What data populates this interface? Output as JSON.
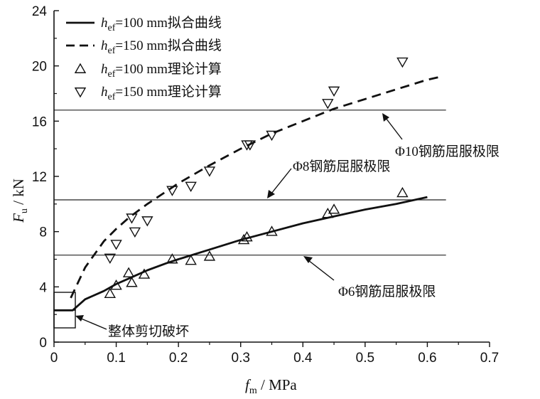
{
  "chart_data": {
    "type": "scatter",
    "xlabel": {
      "main": "f",
      "sub": "m",
      "unit": " / MPa"
    },
    "ylabel": {
      "main": "F",
      "sub": "u",
      "unit": " / kN"
    },
    "xlim": [
      0,
      0.7
    ],
    "ylim": [
      0,
      24
    ],
    "xticks": [
      "0",
      "0.1",
      "0.2",
      "0.3",
      "0.4",
      "0.5",
      "0.6",
      "0.7"
    ],
    "yticks": [
      "0",
      "4",
      "8",
      "12",
      "16",
      "20",
      "24"
    ],
    "grid": false,
    "legend_position": "top-left",
    "series": [
      {
        "name": {
          "main": "h",
          "sub": "ef",
          "rest": "=100 mm拟合曲线"
        },
        "kind": "line",
        "style": "solid",
        "x": [
          0,
          0.03,
          0.05,
          0.08,
          0.1,
          0.12,
          0.15,
          0.18,
          0.2,
          0.25,
          0.3,
          0.35,
          0.4,
          0.45,
          0.5,
          0.55,
          0.6
        ],
        "y": [
          2.3,
          2.3,
          3.1,
          3.7,
          4.2,
          4.6,
          5.2,
          5.7,
          6.0,
          6.7,
          7.4,
          8.0,
          8.6,
          9.1,
          9.6,
          10.0,
          10.5
        ]
      },
      {
        "name": {
          "main": "h",
          "sub": "ef",
          "rest": "=150 mm拟合曲线"
        },
        "kind": "line",
        "style": "dashed",
        "x": [
          0.027,
          0.05,
          0.08,
          0.1,
          0.12,
          0.15,
          0.18,
          0.2,
          0.25,
          0.3,
          0.35,
          0.4,
          0.45,
          0.5,
          0.55,
          0.6,
          0.62
        ],
        "y": [
          3.2,
          5.4,
          7.3,
          8.2,
          9.0,
          10.0,
          10.9,
          11.5,
          12.8,
          14.0,
          15.1,
          16.0,
          16.9,
          17.6,
          18.3,
          19.0,
          19.2
        ]
      },
      {
        "name": {
          "main": "h",
          "sub": "ef",
          "rest": "=100 mm理论计算"
        },
        "kind": "scatter",
        "marker": "triangle-up",
        "x": [
          0.09,
          0.1,
          0.12,
          0.125,
          0.145,
          0.19,
          0.22,
          0.25,
          0.305,
          0.31,
          0.35,
          0.44,
          0.45,
          0.56
        ],
        "y": [
          3.5,
          4.1,
          5.0,
          4.3,
          4.9,
          6.0,
          5.9,
          6.2,
          7.4,
          7.6,
          8.0,
          9.3,
          9.6,
          10.8
        ]
      },
      {
        "name": {
          "main": "h",
          "sub": "ef",
          "rest": "=150 mm理论计算"
        },
        "kind": "scatter",
        "marker": "triangle-down",
        "x": [
          0.09,
          0.1,
          0.125,
          0.13,
          0.15,
          0.19,
          0.22,
          0.25,
          0.31,
          0.315,
          0.35,
          0.44,
          0.45,
          0.56
        ],
        "y": [
          6.1,
          7.1,
          9.0,
          8.0,
          8.8,
          11.0,
          11.3,
          12.4,
          14.3,
          14.3,
          15.0,
          17.3,
          18.2,
          20.3
        ]
      }
    ],
    "reference_lines": [
      {
        "y": 6.3,
        "label": "Φ6钢筋屈服极限"
      },
      {
        "y": 10.3,
        "label": "Φ8钢筋屈服极限"
      },
      {
        "y": 16.8,
        "label": "Φ10钢筋屈服极限"
      }
    ],
    "annotation": {
      "label": "整体剪切破坏"
    }
  }
}
